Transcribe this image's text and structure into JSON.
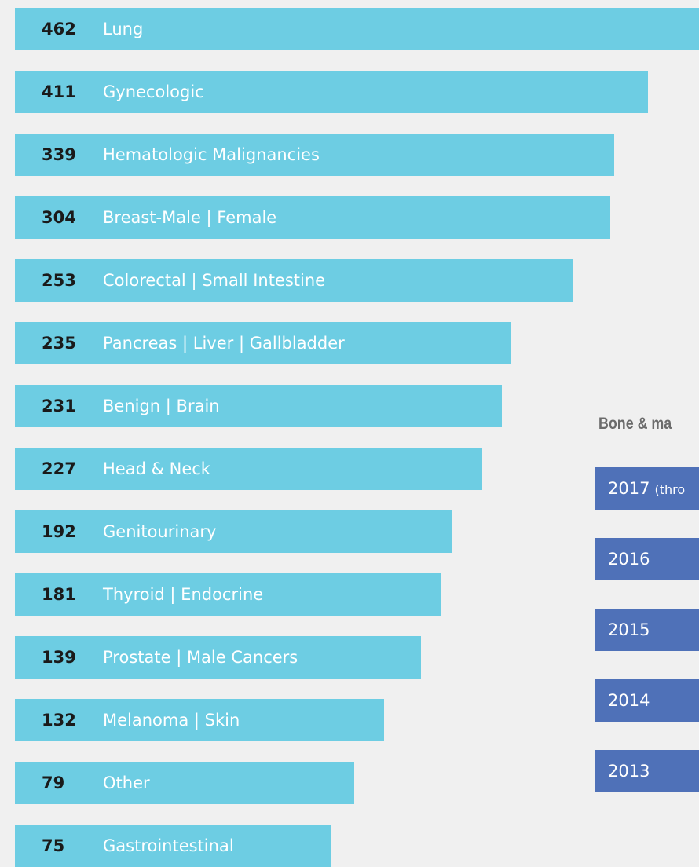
{
  "rows": [
    {
      "number": "462",
      "label": "Lung"
    },
    {
      "number": "411",
      "label": "Gynecologic"
    },
    {
      "number": "339",
      "label": "Hematologic Malignancies"
    },
    {
      "number": "304",
      "label": "Breast-Male | Female"
    },
    {
      "number": "253",
      "label": "Colorectal | Small Intestine"
    },
    {
      "number": "235",
      "label": "Pancreas | Liver | Gallbladder"
    },
    {
      "number": "231",
      "label": "Benign | Brain"
    },
    {
      "number": "227",
      "label": "Head & Neck"
    },
    {
      "number": "192",
      "label": "Genitourinary"
    },
    {
      "number": "181",
      "label": "Thyroid | Endocrine"
    },
    {
      "number": "139",
      "label": "Prostate | Male Cancers"
    },
    {
      "number": "132",
      "label": "Melanoma | Skin"
    },
    {
      "number": "79",
      "label": "Other"
    },
    {
      "number": "75",
      "label": "Gastrointestinal"
    }
  ],
  "side_panel": {
    "title": "Bone & ma",
    "years": [
      {
        "year": "2017",
        "note": "(thro"
      },
      {
        "year": "2016"
      },
      {
        "year": "2015"
      },
      {
        "year": "2014"
      },
      {
        "year": "2013"
      }
    ]
  }
}
